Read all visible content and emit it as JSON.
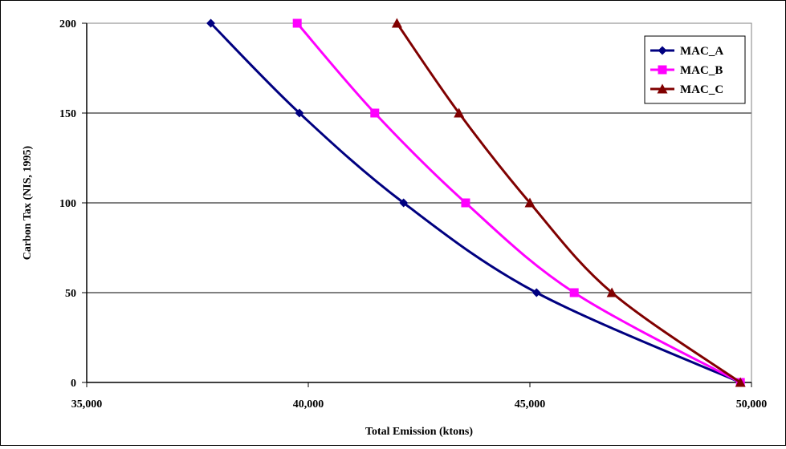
{
  "chart_data": {
    "type": "line",
    "title": "",
    "xlabel": "Total Emission (ktons)",
    "ylabel": "Carbon Tax (NIS, 1995)",
    "xlim": [
      35000,
      50000
    ],
    "ylim": [
      0,
      200
    ],
    "x_ticks": [
      35000,
      40000,
      45000,
      50000
    ],
    "x_tick_labels": [
      "35,000",
      "40,000",
      "45,000",
      "50,000"
    ],
    "y_ticks": [
      0,
      50,
      100,
      150,
      200
    ],
    "y_tick_labels": [
      "0",
      "50",
      "100",
      "150",
      "200"
    ],
    "grid": "horizontal",
    "legend_position": "top-right",
    "series": [
      {
        "name": "MAC_A",
        "color": "#000080",
        "marker": "diamond",
        "points": [
          [
            37800,
            200
          ],
          [
            39800,
            150
          ],
          [
            42150,
            100
          ],
          [
            45150,
            50
          ],
          [
            49750,
            0
          ]
        ]
      },
      {
        "name": "MAC_B",
        "color": "#FF00FF",
        "marker": "square",
        "points": [
          [
            39750,
            200
          ],
          [
            41500,
            150
          ],
          [
            43550,
            100
          ],
          [
            46000,
            50
          ],
          [
            49750,
            0
          ]
        ]
      },
      {
        "name": "MAC_C",
        "color": "#800000",
        "marker": "triangle",
        "points": [
          [
            42000,
            200
          ],
          [
            43400,
            150
          ],
          [
            45000,
            100
          ],
          [
            46850,
            50
          ],
          [
            49750,
            0
          ]
        ]
      }
    ]
  }
}
